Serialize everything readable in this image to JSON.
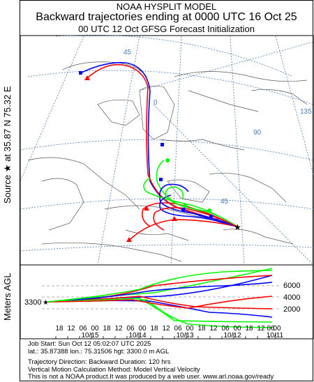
{
  "header": {
    "line1": "NOAA HYSPLIT MODEL",
    "line2": "Backward trajectories ending at 0000 UTC 16 Oct 25",
    "line3": "00 UTC 12 Oct    GFSG  Forecast Initialization"
  },
  "side": {
    "source_label": "Source ★ at   35.87 N   75.32 E",
    "meters_label": "Meters AGL"
  },
  "map": {
    "lat_labels": [
      "45",
      "0",
      "90",
      "135"
    ],
    "lon_label": "45",
    "source_marker": "★"
  },
  "profile": {
    "start_height": "3300",
    "height_labels": [
      "6000",
      "4000",
      "2000"
    ],
    "hour_ticks": [
      "18",
      "12",
      "06",
      "00",
      "18",
      "12",
      "06",
      "00",
      "18",
      "12",
      "06",
      "00",
      "18",
      "12",
      "06",
      "00",
      "18",
      "12",
      "06",
      "00"
    ],
    "date_labels": [
      "10/15",
      "10/14",
      "10/13",
      "10/12",
      "10/11"
    ]
  },
  "info": {
    "line1": "Job Start: Sun Oct 12 05:02:07 UTC 2025",
    "line2": "lat.: 35.87388   lon.: 75.31506    hgt: 3300.0 m AGL",
    "line3": "Trajectory Direction: Backward      Duration: 120 hrs",
    "line4": "Vertical Motion Calculation Method: Model Vertical Velocity",
    "line5": "This is not a NOAA product.It was produced by a web user. www.arl.noaa.gov/ready"
  },
  "colors": {
    "traj_red": "#ff0000",
    "traj_blue": "#0000ff",
    "traj_green": "#00ff00",
    "grid": "#4a7ab8",
    "map_line": "#555555"
  }
}
